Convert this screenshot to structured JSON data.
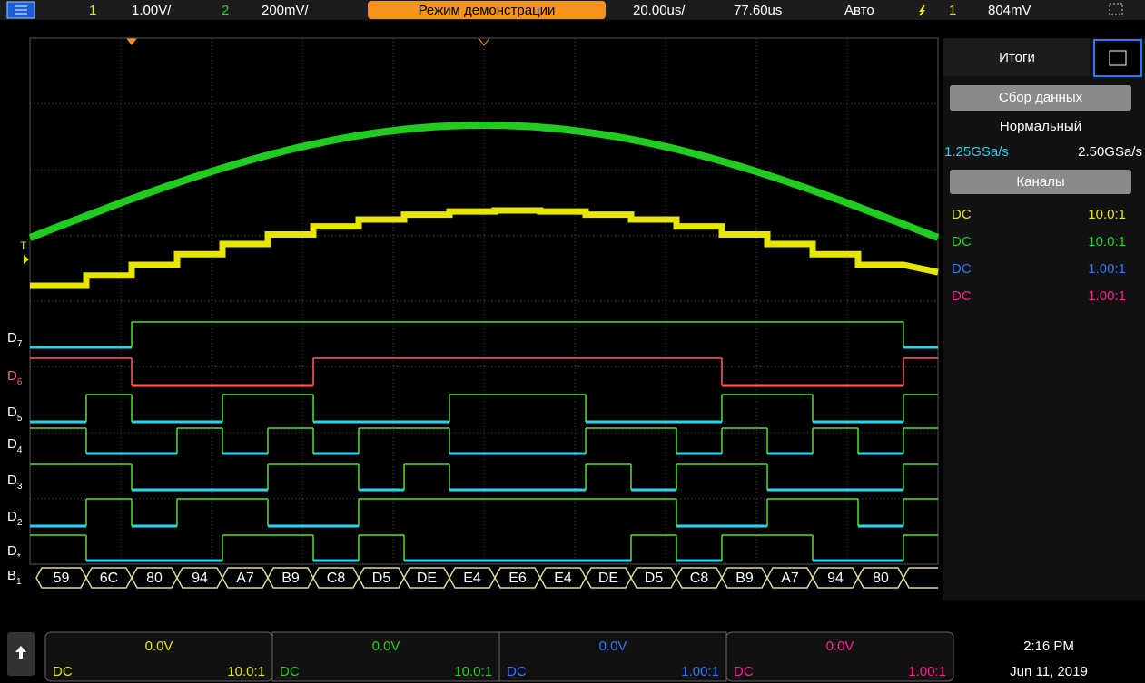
{
  "top_bar": {
    "ch1": "1",
    "ch1_scale": "1.00V/",
    "ch2": "2",
    "ch2_scale": "200mV/",
    "mode": "Режим демонстрации",
    "time_scale": "20.00us/",
    "delay": "77.60us",
    "trigger_mode": "Авто",
    "trigger_channel": "1",
    "trigger_level": "804mV"
  },
  "side_panel": {
    "title": "Итоги",
    "acquisition_button": "Сбор данных",
    "acquisition_mode": "Нормальный",
    "sample_rate_1": "1.25GSa/s",
    "sample_rate_2": "2.50GSa/s",
    "channels_button": "Каналы",
    "channels": [
      {
        "coupling": "DC",
        "probe": "10.0:1",
        "color": "#e6e600"
      },
      {
        "coupling": "DC",
        "probe": "10.0:1",
        "color": "#22d022"
      },
      {
        "coupling": "DC",
        "probe": "1.00:1",
        "color": "#2a78ff"
      },
      {
        "coupling": "DC",
        "probe": "1.00:1",
        "color": "#ff1e96"
      }
    ]
  },
  "waveform": {
    "trigger_marker": "T",
    "digital_labels": [
      {
        "letter": "D",
        "index": "7"
      },
      {
        "letter": "D",
        "index": "6"
      },
      {
        "letter": "D",
        "index": "5"
      },
      {
        "letter": "D",
        "index": "4"
      },
      {
        "letter": "D",
        "index": "3"
      },
      {
        "letter": "D",
        "index": "2"
      },
      {
        "letter": "D",
        "index": "*"
      }
    ],
    "bus_label": {
      "letter": "B",
      "index": "1"
    },
    "bus_values": [
      "59",
      "6C",
      "80",
      "94",
      "A7",
      "B9",
      "C8",
      "D5",
      "DE",
      "E4",
      "E6",
      "E4",
      "DE",
      "D5",
      "C8",
      "B9",
      "A7",
      "94",
      "80"
    ]
  },
  "bottom_bar": {
    "channels": [
      {
        "offset": "0.0V",
        "coupling": "DC",
        "probe": "10.0:1",
        "color": "#e6e600"
      },
      {
        "offset": "0.0V",
        "coupling": "DC",
        "probe": "10.0:1",
        "color": "#22d022"
      },
      {
        "offset": "0.0V",
        "coupling": "DC",
        "probe": "1.00:1",
        "color": "#2a78ff"
      },
      {
        "offset": "0.0V",
        "coupling": "DC",
        "probe": "1.00:1",
        "color": "#ff1e96"
      }
    ],
    "time": "2:16 PM",
    "date": "Jun 11, 2019"
  }
}
